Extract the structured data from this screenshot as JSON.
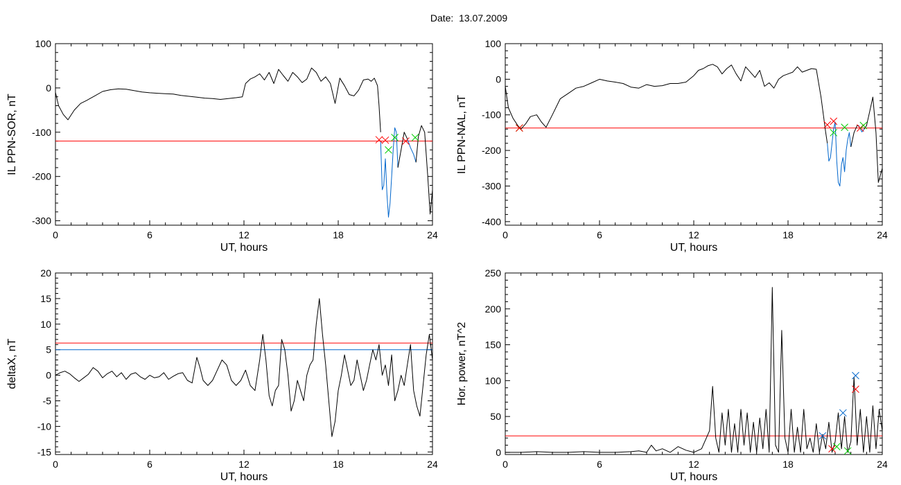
{
  "figure": {
    "title": "Date:  13.07.2009"
  },
  "colors": {
    "axis": "#000000",
    "data_line": "#000000",
    "threshold_red": "#ff0000",
    "threshold_blue": "#0066cc",
    "segment_blue": "#0066cc",
    "marker_red": "#ff0000",
    "marker_green": "#00cc00",
    "marker_blue": "#0066cc"
  },
  "chart_data": [
    {
      "type": "line",
      "xlabel": "UT, hours",
      "ylabel": "IL PPN-SOR, nT",
      "xlim": [
        0,
        24
      ],
      "ylim": [
        -310,
        100
      ],
      "xticks": [
        0,
        6,
        12,
        18,
        24
      ],
      "yticks": [
        -300,
        -200,
        -100,
        0,
        100
      ],
      "series": [
        {
          "color": "#000000",
          "x": [
            0,
            0.2,
            0.5,
            0.8,
            1.2,
            1.6,
            2.0,
            2.5,
            3.0,
            3.5,
            4.0,
            4.5,
            5.0,
            5.5,
            6.0,
            6.5,
            7.0,
            7.5,
            8.0,
            8.5,
            9.0,
            9.5,
            10.0,
            10.5,
            11.0,
            11.5,
            11.9,
            12.1,
            12.4,
            12.7,
            13.0,
            13.3,
            13.6,
            13.9,
            14.2,
            14.5,
            14.8,
            15.1,
            15.4,
            15.7,
            16.0,
            16.3,
            16.6,
            16.9,
            17.2,
            17.5,
            17.8,
            18.1,
            18.4,
            18.7,
            19.0,
            19.3,
            19.6,
            19.9,
            20.1,
            20.3,
            20.5,
            20.6,
            20.7
          ],
          "y": [
            -10,
            -40,
            -60,
            -72,
            -50,
            -35,
            -28,
            -18,
            -8,
            -4,
            -2,
            -3,
            -6,
            -9,
            -11,
            -12,
            -13,
            -14,
            -17,
            -19,
            -21,
            -23,
            -24,
            -26,
            -24,
            -22,
            -20,
            10,
            20,
            25,
            32,
            18,
            35,
            10,
            42,
            28,
            15,
            35,
            25,
            12,
            20,
            45,
            35,
            15,
            25,
            10,
            -35,
            22,
            5,
            -15,
            -18,
            -5,
            18,
            20,
            15,
            22,
            5,
            -40,
            -100
          ]
        },
        {
          "color": "#0066cc",
          "x": [
            20.7,
            20.8,
            20.9,
            21.0,
            21.1,
            21.2,
            21.3,
            21.4,
            21.5,
            21.6,
            21.7,
            21.8
          ],
          "y": [
            -120,
            -230,
            -220,
            -160,
            -240,
            -292,
            -260,
            -200,
            -140,
            -90,
            -100,
            -180
          ]
        },
        {
          "color": "#000000",
          "x": [
            21.8,
            22.0,
            22.2,
            22.4
          ],
          "y": [
            -180,
            -140,
            -100,
            -115
          ]
        },
        {
          "color": "#0066cc",
          "x": [
            22.4,
            22.6,
            22.8,
            22.95
          ],
          "y": [
            -115,
            -135,
            -150,
            -168
          ]
        },
        {
          "color": "#000000",
          "x": [
            22.95,
            23.1,
            23.3,
            23.5,
            23.7,
            23.85,
            24
          ],
          "y": [
            -168,
            -110,
            -85,
            -100,
            -200,
            -285,
            -230
          ]
        }
      ],
      "hlines": [
        {
          "y": -120,
          "color": "#ff0000"
        }
      ],
      "markers": [
        {
          "x": 20.6,
          "y": -117,
          "color": "#ff0000"
        },
        {
          "x": 21.0,
          "y": -118,
          "color": "#ff0000"
        },
        {
          "x": 21.2,
          "y": -140,
          "color": "#00cc00"
        },
        {
          "x": 21.6,
          "y": -112,
          "color": "#00cc00"
        },
        {
          "x": 22.3,
          "y": -120,
          "color": "#ff0000"
        },
        {
          "x": 22.9,
          "y": -112,
          "color": "#00cc00"
        }
      ]
    },
    {
      "type": "line",
      "xlabel": "UT, hours",
      "ylabel": "IL PPN-NAL, nT",
      "xlim": [
        0,
        24
      ],
      "ylim": [
        -410,
        100
      ],
      "xticks": [
        0,
        6,
        12,
        18,
        24
      ],
      "yticks": [
        -400,
        -300,
        -200,
        -100,
        0,
        100
      ],
      "series": [
        {
          "color": "#000000",
          "x": [
            0,
            0.2,
            0.5,
            0.8,
            1.0,
            1.3,
            1.6,
            2.0,
            2.3,
            2.6,
            3.0,
            3.5,
            4.0,
            4.5,
            5.0,
            5.5,
            6.0,
            6.5,
            7.0,
            7.5,
            8.0,
            8.5,
            9.0,
            9.5,
            10.0,
            10.5,
            11.0,
            11.5,
            12.0,
            12.3,
            12.6,
            12.9,
            13.2,
            13.5,
            13.8,
            14.1,
            14.4,
            14.7,
            15.0,
            15.3,
            15.6,
            15.9,
            16.2,
            16.5,
            16.8,
            17.1,
            17.4,
            17.7,
            18.0,
            18.3,
            18.6,
            18.9,
            19.2,
            19.5,
            19.8,
            20.1,
            20.4,
            20.5
          ],
          "y": [
            -20,
            -80,
            -110,
            -130,
            -140,
            -125,
            -105,
            -100,
            -120,
            -135,
            -100,
            -55,
            -40,
            -25,
            -20,
            -10,
            0,
            -5,
            -8,
            -12,
            -22,
            -25,
            -15,
            -20,
            -18,
            -12,
            -12,
            -8,
            10,
            25,
            30,
            38,
            42,
            35,
            15,
            30,
            40,
            15,
            -5,
            35,
            20,
            5,
            25,
            -20,
            -10,
            -25,
            0,
            10,
            15,
            20,
            35,
            20,
            25,
            30,
            28,
            -50,
            -150,
            -180
          ]
        },
        {
          "color": "#0066cc",
          "x": [
            20.5,
            20.6,
            20.7,
            20.8,
            20.9,
            21.0,
            21.1,
            21.2,
            21.3,
            21.4,
            21.5,
            21.6,
            21.7,
            21.8,
            21.9,
            22.0
          ],
          "y": [
            -180,
            -230,
            -220,
            -180,
            -140,
            -120,
            -230,
            -290,
            -300,
            -240,
            -220,
            -260,
            -200,
            -170,
            -150,
            -190
          ]
        },
        {
          "color": "#000000",
          "x": [
            22.0,
            22.2,
            22.4,
            22.5
          ],
          "y": [
            -190,
            -150,
            -130,
            -130
          ]
        },
        {
          "color": "#0066cc",
          "x": [
            22.5,
            22.7,
            22.85
          ],
          "y": [
            -130,
            -148,
            -140
          ]
        },
        {
          "color": "#000000",
          "x": [
            22.85,
            23.0,
            23.2,
            23.4,
            23.6,
            23.75,
            24
          ],
          "y": [
            -140,
            -130,
            -90,
            -50,
            -150,
            -290,
            -250
          ]
        }
      ],
      "hlines": [
        {
          "y": -137,
          "color": "#ff0000"
        }
      ],
      "markers": [
        {
          "x": 0.9,
          "y": -137,
          "color": "#00cc00"
        },
        {
          "x": 0.9,
          "y": -137,
          "color": "#ff0000"
        },
        {
          "x": 20.5,
          "y": -128,
          "color": "#ff0000"
        },
        {
          "x": 20.9,
          "y": -118,
          "color": "#ff0000"
        },
        {
          "x": 20.9,
          "y": -150,
          "color": "#00cc00"
        },
        {
          "x": 21.6,
          "y": -135,
          "color": "#00cc00"
        },
        {
          "x": 22.6,
          "y": -137,
          "color": "#ff0000"
        },
        {
          "x": 22.8,
          "y": -130,
          "color": "#00cc00"
        }
      ]
    },
    {
      "type": "line",
      "xlabel": "UT, hours",
      "ylabel": "deltaX, nT",
      "xlim": [
        0,
        24
      ],
      "ylim": [
        -15.5,
        20
      ],
      "xticks": [
        0,
        6,
        12,
        18,
        24
      ],
      "yticks": [
        -15,
        -10,
        -5,
        0,
        5,
        10,
        15,
        20
      ],
      "series": [
        {
          "color": "#000000",
          "x": [
            0,
            0.3,
            0.6,
            0.9,
            1.2,
            1.5,
            1.8,
            2.1,
            2.4,
            2.7,
            3.0,
            3.3,
            3.6,
            3.9,
            4.2,
            4.5,
            4.8,
            5.1,
            5.4,
            5.7,
            6.0,
            6.3,
            6.6,
            6.9,
            7.2,
            7.5,
            7.8,
            8.1,
            8.4,
            8.7,
            9.0,
            9.2,
            9.4,
            9.7,
            10.0,
            10.3,
            10.6,
            10.9,
            11.2,
            11.5,
            11.8,
            12.1,
            12.4,
            12.7,
            13.0,
            13.2,
            13.4,
            13.6,
            13.8,
            14.0,
            14.2,
            14.4,
            14.6,
            14.8,
            15.0,
            15.2,
            15.4,
            15.6,
            15.8,
            16.0,
            16.2,
            16.4,
            16.6,
            16.8,
            17.0,
            17.2,
            17.4,
            17.6,
            17.8,
            18.0,
            18.2,
            18.4,
            18.6,
            18.8,
            19.0,
            19.2,
            19.4,
            19.6,
            19.8,
            20.0,
            20.2,
            20.4,
            20.6,
            20.8,
            21.0,
            21.2,
            21.4,
            21.6,
            21.8,
            22.0,
            22.2,
            22.4,
            22.6,
            22.8,
            23.0,
            23.2,
            23.4,
            23.6,
            23.8,
            24
          ],
          "y": [
            0,
            0.5,
            0.8,
            0.3,
            -0.5,
            -1.2,
            -0.5,
            0.2,
            1.5,
            0.8,
            -0.5,
            0.3,
            0.8,
            -0.3,
            0.5,
            -0.8,
            0.2,
            0.5,
            -0.3,
            -0.8,
            0,
            -0.5,
            -0.3,
            0.5,
            -0.8,
            -0.2,
            0.3,
            0.5,
            -1,
            -1.5,
            3.5,
            1.5,
            -1,
            -2,
            -1,
            1,
            3,
            2,
            -1,
            -2,
            -1,
            1,
            -2,
            -3,
            3,
            8,
            3,
            -4,
            -6,
            -3,
            -2,
            7,
            5,
            0,
            -7,
            -5,
            -1,
            -3,
            -5,
            0,
            2,
            3,
            10,
            15,
            8,
            2,
            -5,
            -12,
            -9,
            -3,
            0,
            4,
            1,
            -2,
            -1,
            3,
            0,
            -3,
            -1,
            2,
            5,
            3,
            6,
            0,
            2,
            -2,
            4,
            -5,
            -3,
            0,
            -2,
            2,
            6,
            -3,
            -6,
            -8,
            -2,
            4,
            8,
            3
          ]
        }
      ],
      "hlines": [
        {
          "y": 6.3,
          "color": "#ff0000"
        },
        {
          "y": 5.0,
          "color": "#0066cc"
        }
      ],
      "markers": []
    },
    {
      "type": "line",
      "xlabel": "UT, hours",
      "ylabel": "Hor. power, nT^2",
      "xlim": [
        0,
        24
      ],
      "ylim": [
        -3,
        250
      ],
      "xticks": [
        0,
        6,
        12,
        18,
        24
      ],
      "yticks": [
        0,
        50,
        100,
        150,
        200,
        250
      ],
      "series": [
        {
          "color": "#000000",
          "x": [
            0,
            1,
            2,
            3,
            4,
            5,
            6,
            7,
            8,
            8.5,
            9,
            9.3,
            9.6,
            10,
            10.5,
            11,
            11.5,
            12,
            12.5,
            13,
            13.2,
            13.4,
            13.6,
            13.8,
            14.0,
            14.2,
            14.4,
            14.6,
            14.8,
            15.0,
            15.2,
            15.4,
            15.6,
            15.8,
            16.0,
            16.2,
            16.4,
            16.6,
            16.8,
            17.0,
            17.2,
            17.4,
            17.6,
            17.8,
            18.0,
            18.2,
            18.4,
            18.6,
            18.8,
            19.0,
            19.2,
            19.4,
            19.6,
            19.8,
            20.0,
            20.2,
            20.4,
            20.6,
            20.8,
            21.0,
            21.2,
            21.4,
            21.6,
            21.8,
            22.0,
            22.2,
            22.4,
            22.6,
            22.8,
            23.0,
            23.2,
            23.4,
            23.6,
            23.8,
            24
          ],
          "y": [
            0,
            0,
            1,
            0,
            0,
            1,
            0,
            0,
            1,
            2,
            0,
            10,
            2,
            5,
            0,
            8,
            3,
            0,
            5,
            30,
            92,
            20,
            0,
            55,
            10,
            60,
            0,
            40,
            0,
            60,
            10,
            55,
            0,
            42,
            0,
            48,
            5,
            60,
            0,
            230,
            10,
            0,
            170,
            20,
            0,
            60,
            0,
            35,
            0,
            60,
            5,
            20,
            0,
            40,
            0,
            25,
            5,
            42,
            0,
            15,
            55,
            5,
            50,
            0,
            15,
            105,
            10,
            60,
            0,
            50,
            0,
            65,
            5,
            60,
            30
          ]
        }
      ],
      "hlines": [
        {
          "y": 23,
          "color": "#ff0000"
        }
      ],
      "markers": [
        {
          "x": 20.2,
          "y": 23,
          "color": "#0066cc"
        },
        {
          "x": 20.8,
          "y": 5,
          "color": "#ff0000"
        },
        {
          "x": 21.1,
          "y": 8,
          "color": "#00cc00"
        },
        {
          "x": 21.5,
          "y": 55,
          "color": "#0066cc"
        },
        {
          "x": 21.8,
          "y": 2,
          "color": "#00cc00"
        },
        {
          "x": 22.3,
          "y": 107,
          "color": "#0066cc"
        },
        {
          "x": 22.3,
          "y": 88,
          "color": "#ff0000"
        }
      ]
    }
  ]
}
